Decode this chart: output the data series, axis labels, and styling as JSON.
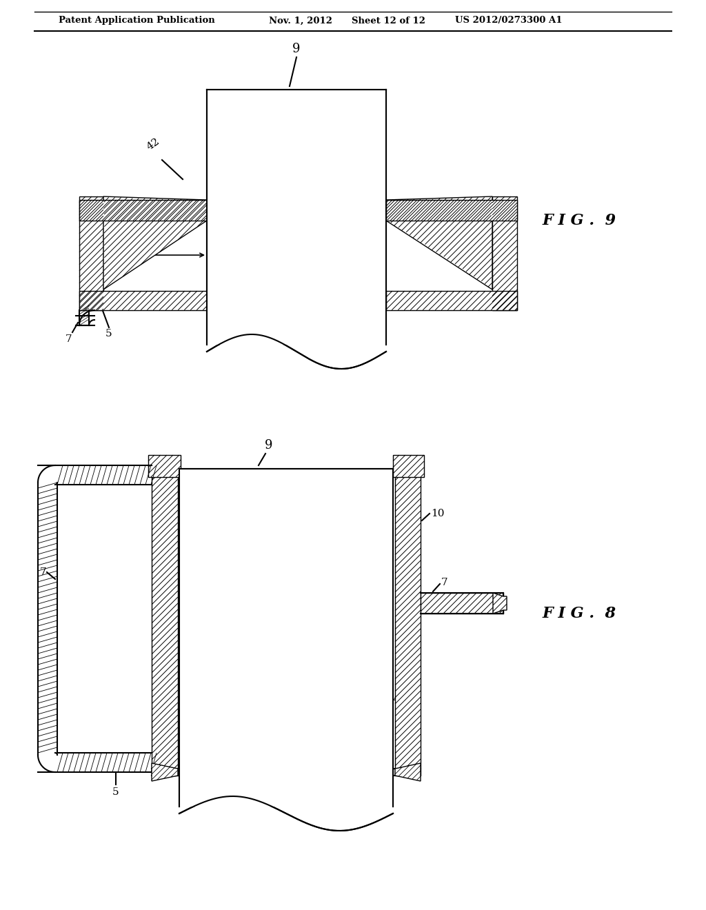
{
  "bg_color": "#ffffff",
  "line_color": "#000000",
  "header_text": "Patent Application Publication",
  "header_date": "Nov. 1, 2012",
  "header_sheet": "Sheet 12 of 12",
  "header_patent": "US 2012/0273300 A1",
  "fig9_label": "F I G .  9",
  "fig8_label": "F I G .  8"
}
